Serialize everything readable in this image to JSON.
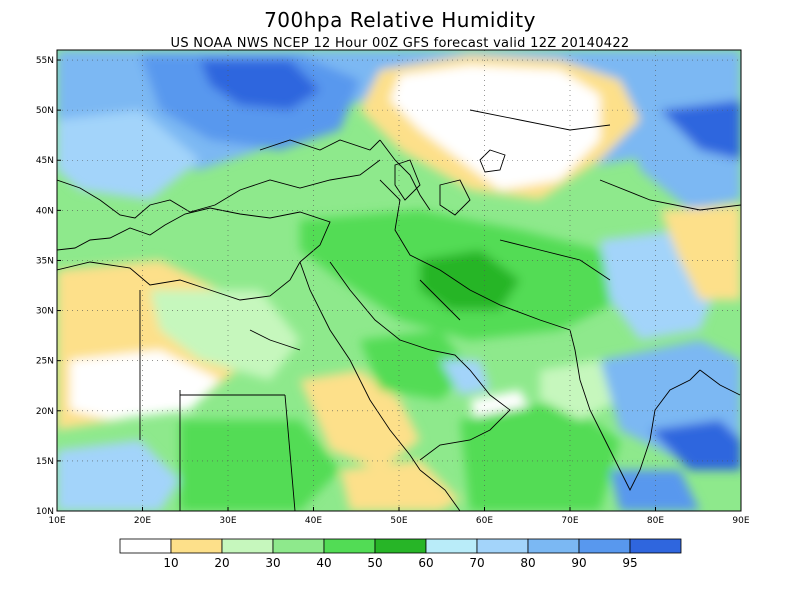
{
  "title": "700hpa Relative Humidity",
  "subtitle": "US NOAA NWS NCEP 12 Hour 00Z GFS forecast valid 12Z 20140422",
  "map": {
    "lon_range": [
      10,
      90
    ],
    "lat_range": [
      10,
      56
    ],
    "lon_ticks": [
      "10E",
      "20E",
      "30E",
      "40E",
      "50E",
      "60E",
      "70E",
      "80E",
      "90E"
    ],
    "lat_ticks": [
      "10N",
      "15N",
      "20N",
      "25N",
      "30N",
      "35N",
      "40N",
      "45N",
      "50N",
      "55N"
    ]
  },
  "colorbar": {
    "colors": [
      "#ffffff",
      "#fde08a",
      "#c6f7bd",
      "#8ee98c",
      "#52dc55",
      "#27b527",
      "#b9ecf9",
      "#a3d4fa",
      "#7bb8f3",
      "#5898ee",
      "#2f66de"
    ],
    "labels": [
      "10",
      "20",
      "30",
      "40",
      "50",
      "60",
      "70",
      "80",
      "90",
      "95"
    ]
  }
}
